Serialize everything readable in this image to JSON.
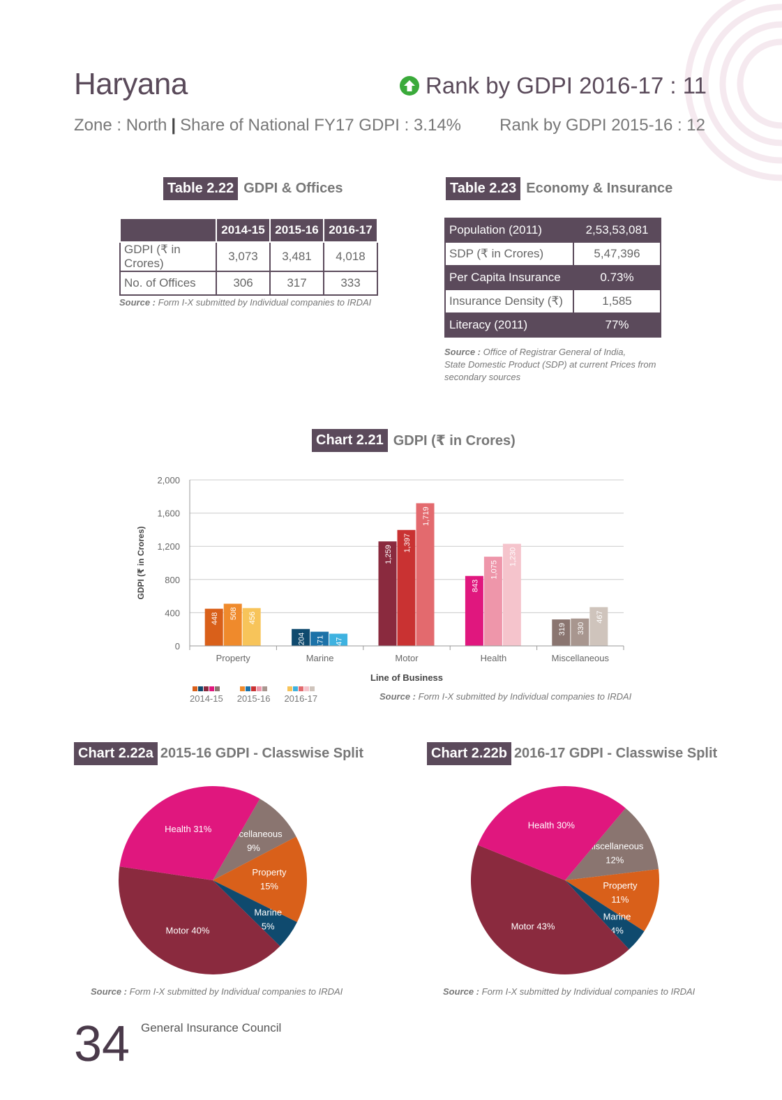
{
  "header": {
    "state": "Haryana",
    "rank_current": "Rank by GDPI 2016-17 : 11",
    "zone": "Zone : North",
    "share": "Share of National FY17 GDPI : 3.14%",
    "rank_previous": "Rank by GDPI 2015-16 : 12",
    "up_icon": "arrow-up-circle-icon",
    "accent_green": "#3aaa3a"
  },
  "table_222": {
    "tag": "Table 2.22",
    "title": "GDPI & Offices",
    "columns": [
      "",
      "2014-15",
      "2015-16",
      "2016-17"
    ],
    "rows": [
      [
        "GDPI (₹ in Crores)",
        "3,073",
        "3,481",
        "4,018"
      ],
      [
        "No. of Offices",
        "306",
        "317",
        "333"
      ]
    ],
    "source_label": "Source :",
    "source_text": "Form I-X submitted by Individual companies to IRDAI"
  },
  "table_223": {
    "tag": "Table 2.23",
    "title": "Economy & Insurance",
    "rows": [
      [
        "Population (2011)",
        "2,53,53,081"
      ],
      [
        "SDP (₹ in Crores)",
        "5,47,396"
      ],
      [
        "Per Capita Insurance",
        "0.73%"
      ],
      [
        "Insurance Density (₹)",
        "1,585"
      ],
      [
        "Literacy (2011)",
        "77%"
      ]
    ],
    "source_label": "Source :",
    "source_line1": "Office of Registrar General of India,",
    "source_line2": "State Domestic Product (SDP) at current Prices from",
    "source_line3": "secondary sources"
  },
  "chart_221": {
    "tag": "Chart 2.21",
    "title": "GDPI (₹ in Crores)",
    "legend": [
      "2014-15",
      "2015-16",
      "2016-17"
    ],
    "source_label": "Source :",
    "source_text": "Form I-X submitted by Individual companies to IRDAI"
  },
  "chart_222a": {
    "tag": "Chart 2.22a",
    "title": "2015-16 GDPI - Classwise Split",
    "source_label": "Source :",
    "source_text": "Form I-X submitted by Individual companies to IRDAI"
  },
  "chart_222b": {
    "tag": "Chart 2.22b",
    "title": "2016-17 GDPI - Classwise Split",
    "source_label": "Source :",
    "source_text": "Form I-X submitted by Individual companies to IRDAI"
  },
  "footer": {
    "page": "34",
    "org": "General Insurance Council"
  },
  "chart_data": [
    {
      "type": "bar",
      "title": "GDPI (₹ in Crores)",
      "xlabel": "Line of Business",
      "ylabel": "GDPI (₹ in Crores)",
      "ylim": [
        0,
        2000
      ],
      "yticks": [
        0,
        400,
        800,
        1200,
        1600,
        2000
      ],
      "ytick_labels": [
        "0",
        "400",
        "800",
        "1,200",
        "1,600",
        "2,000"
      ],
      "categories": [
        "Property",
        "Marine",
        "Motor",
        "Health",
        "Miscellaneous"
      ],
      "series": [
        {
          "name": "2014-15",
          "values": [
            448,
            204,
            1259,
            843,
            319
          ]
        },
        {
          "name": "2015-16",
          "values": [
            508,
            171,
            1397,
            1075,
            330
          ]
        },
        {
          "name": "2016-17",
          "values": [
            456,
            147,
            1719,
            1230,
            467
          ]
        }
      ],
      "value_labels": [
        [
          "448",
          "204",
          "1,259",
          "843",
          "319"
        ],
        [
          "508",
          "171",
          "1,397",
          "1,075",
          "330"
        ],
        [
          "456",
          "147",
          "1,719",
          "1,230",
          "467"
        ]
      ],
      "colors": [
        [
          "#d9601a",
          "#0f4a6e",
          "#8a2a3e",
          "#e0177e",
          "#8a7570"
        ],
        [
          "#ef8a2c",
          "#1c72a8",
          "#c93232",
          "#ee96aa",
          "#a8968f"
        ],
        [
          "#f7c45a",
          "#3eb2e0",
          "#e36a6e",
          "#f5c4cc",
          "#cfc4bc"
        ]
      ],
      "grid": true,
      "legend_position": "bottom-left"
    },
    {
      "type": "pie",
      "title": "2015-16 GDPI - Classwise Split",
      "labels": [
        "Miscellaneous",
        "Property",
        "Marine",
        "Motor",
        "Health"
      ],
      "values": [
        9,
        15,
        5,
        40,
        31
      ],
      "display": [
        [
          "Miscellaneous",
          "9%"
        ],
        [
          "Property",
          "15%"
        ],
        [
          "Marine",
          "5%"
        ],
        [
          "Motor 40%"
        ],
        [
          "Health 31%"
        ]
      ],
      "colors": [
        "#8a7570",
        "#d9601a",
        "#0f4a6e",
        "#8a2a3e",
        "#e0177e"
      ]
    },
    {
      "type": "pie",
      "title": "2016-17 GDPI - Classwise Split",
      "labels": [
        "Miscellaneous",
        "Property",
        "Marine",
        "Motor",
        "Health"
      ],
      "values": [
        12,
        11,
        4,
        43,
        30
      ],
      "display": [
        [
          "Miscellaneous",
          "12%"
        ],
        [
          "Property",
          "11%"
        ],
        [
          "Marine",
          "4%"
        ],
        [
          "Motor 43%"
        ],
        [
          "Health 30%"
        ]
      ],
      "colors": [
        "#8a7570",
        "#d9601a",
        "#0f4a6e",
        "#8a2a3e",
        "#e0177e"
      ]
    }
  ]
}
